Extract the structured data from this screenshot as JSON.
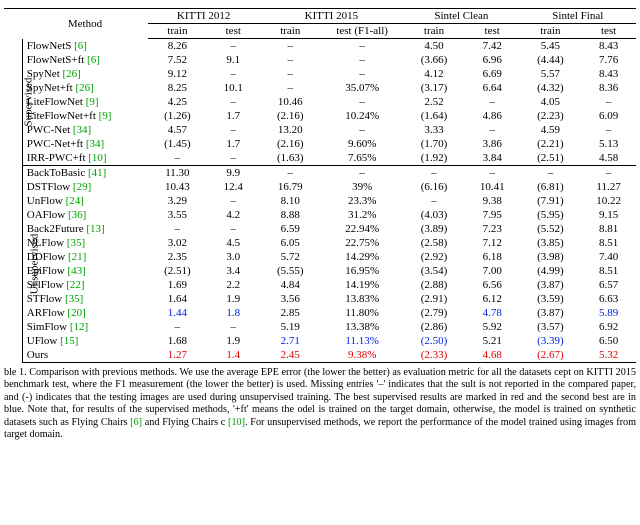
{
  "colors": {
    "cite": "#00a100",
    "best": "#e00000",
    "second": "#0020e0",
    "text": "#000000",
    "background": "#ffffff"
  },
  "header": {
    "method": "Method",
    "groups": [
      "KITTI 2012",
      "KITTI 2015",
      "Sintel Clean",
      "Sintel Final"
    ],
    "sub": [
      "train",
      "test",
      "train",
      "test (F1-all)",
      "train",
      "test",
      "train",
      "test"
    ]
  },
  "section_labels": {
    "supervised": "Supervised",
    "unsupervised": "Unsupervised"
  },
  "supervised": [
    {
      "name": "FlowNetS",
      "cite": "[6]",
      "v": [
        "8.26",
        "–",
        "–",
        "–",
        "4.50",
        "7.42",
        "5.45",
        "8.43"
      ]
    },
    {
      "name": "FlowNetS+ft",
      "cite": "[6]",
      "v": [
        "7.52",
        "9.1",
        "–",
        "–",
        "(3.66)",
        "6.96",
        "(4.44)",
        "7.76"
      ]
    },
    {
      "name": "SpyNet",
      "cite": "[26]",
      "v": [
        "9.12",
        "–",
        "–",
        "–",
        "4.12",
        "6.69",
        "5.57",
        "8.43"
      ]
    },
    {
      "name": "SpyNet+ft",
      "cite": "[26]",
      "v": [
        "8.25",
        "10.1",
        "–",
        "35.07%",
        "(3.17)",
        "6.64",
        "(4.32)",
        "8.36"
      ]
    },
    {
      "name": "LiteFlowNet",
      "cite": "[9]",
      "v": [
        "4.25",
        "–",
        "10.46",
        "–",
        "2.52",
        "–",
        "4.05",
        "–"
      ]
    },
    {
      "name": "LiteFlowNet+ft",
      "cite": "[9]",
      "v": [
        "(1.26)",
        "1.7",
        "(2.16)",
        "10.24%",
        "(1.64)",
        "4.86",
        "(2.23)",
        "6.09"
      ]
    },
    {
      "name": "PWC-Net",
      "cite": "[34]",
      "v": [
        "4.57",
        "–",
        "13.20",
        "–",
        "3.33",
        "–",
        "4.59",
        "–"
      ]
    },
    {
      "name": "PWC-Net+ft",
      "cite": "[34]",
      "v": [
        "(1.45)",
        "1.7",
        "(2.16)",
        "9.60%",
        "(1.70)",
        "3.86",
        "(2.21)",
        "5.13"
      ]
    },
    {
      "name": "IRR-PWC+ft",
      "cite": "[10]",
      "v": [
        "–",
        "–",
        "(1.63)",
        "7.65%",
        "(1.92)",
        "3.84",
        "(2.51)",
        "4.58"
      ]
    }
  ],
  "unsupervised": [
    {
      "name": "BackToBasic",
      "cite": "[41]",
      "v": [
        "11.30",
        "9.9",
        "–",
        "–",
        "–",
        "–",
        "–",
        "–"
      ]
    },
    {
      "name": "DSTFlow",
      "cite": "[29]",
      "v": [
        "10.43",
        "12.4",
        "16.79",
        "39%",
        "(6.16)",
        "10.41",
        "(6.81)",
        "11.27"
      ]
    },
    {
      "name": "UnFlow",
      "cite": "[24]",
      "v": [
        "3.29",
        "–",
        "8.10",
        "23.3%",
        "–",
        "9.38",
        "(7.91)",
        "10.22"
      ]
    },
    {
      "name": "OAFlow",
      "cite": "[36]",
      "v": [
        "3.55",
        "4.2",
        "8.88",
        "31.2%",
        "(4.03)",
        "7.95",
        "(5.95)",
        "9.15"
      ]
    },
    {
      "name": "Back2Future",
      "cite": "[13]",
      "v": [
        "–",
        "–",
        "6.59",
        "22.94%",
        "(3.89)",
        "7.23",
        "(5.52)",
        "8.81"
      ]
    },
    {
      "name": "NLFlow",
      "cite": "[35]",
      "v": [
        "3.02",
        "4.5",
        "6.05",
        "22.75%",
        "(2.58)",
        "7.12",
        "(3.85)",
        "8.51"
      ]
    },
    {
      "name": "DDFlow",
      "cite": "[21]",
      "v": [
        "2.35",
        "3.0",
        "5.72",
        "14.29%",
        "(2.92)",
        "6.18",
        "(3.98)",
        "7.40"
      ]
    },
    {
      "name": "EpiFlow",
      "cite": "[43]",
      "v": [
        "(2.51)",
        "3.4",
        "(5.55)",
        "16.95%",
        "(3.54)",
        "7.00",
        "(4.99)",
        "8.51"
      ]
    },
    {
      "name": "SelFlow",
      "cite": "[22]",
      "v": [
        "1.69",
        "2.2",
        "4.84",
        "14.19%",
        "(2.88)",
        "6.56",
        "(3.87)",
        "6.57"
      ]
    },
    {
      "name": "STFlow",
      "cite": "[35]",
      "v": [
        "1.64",
        "1.9",
        "3.56",
        "13.83%",
        "(2.91)",
        "6.12",
        "(3.59)",
        "6.63"
      ]
    },
    {
      "name": "ARFlow",
      "cite": "[20]",
      "v": [
        "1.44",
        "1.8",
        "2.85",
        "11.80%",
        "(2.79)",
        "4.78",
        "(3.87)",
        "5.89"
      ],
      "hl": {
        "0": "blue",
        "1": "blue",
        "5": "blue",
        "7": "blue"
      }
    },
    {
      "name": "SimFlow",
      "cite": "[12]",
      "v": [
        "–",
        "–",
        "5.19",
        "13.38%",
        "(2.86)",
        "5.92",
        "(3.57)",
        "6.92"
      ]
    },
    {
      "name": "UFlow",
      "cite": "[15]",
      "v": [
        "1.68",
        "1.9",
        "2.71",
        "11.13%",
        "(2.50)",
        "5.21",
        "(3.39)",
        "6.50"
      ],
      "hl": {
        "2": "blue",
        "3": "blue",
        "4": "blue",
        "6": "blue"
      }
    },
    {
      "name": "Ours",
      "cite": "",
      "v": [
        "1.27",
        "1.4",
        "2.45",
        "9.38%",
        "(2.33)",
        "4.68",
        "(2.67)",
        "5.32"
      ],
      "hl": {
        "0": "red",
        "1": "red",
        "2": "red",
        "3": "red",
        "4": "red",
        "5": "red",
        "6": "red",
        "7": "red"
      }
    }
  ],
  "caption": {
    "label": "ble 1.",
    "body_a": " Comparison with previous methods. We use the average EPE error (the lower the better) as evaluation metric for all the datasets cept on KITTI 2015 benchmark test, where the F1 measurement (the lower the better) is used. Missing entries '–' indicates that the sult is not reported in the compared paper, and (-) indicates that the testing images are used during unsupervised training. The best supervised results are marked in red and the second best are in blue. Note that, for results of the supervised methods, '+ft' means the odel is trained on the target domain, otherwise, the model is trained on synthetic datasets such as Flying Chairs ",
    "cite1": "[6]",
    "mid": " and Flying Chairs c ",
    "cite2": "[10]",
    "body_b": ". For unsupervised methods, we report the performance of the model trained using images from target domain."
  }
}
